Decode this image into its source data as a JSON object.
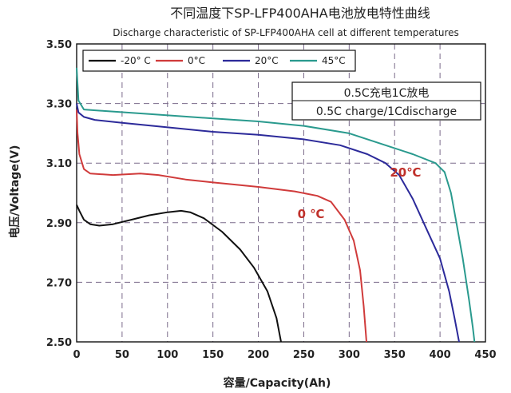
{
  "chart_data": {
    "type": "line",
    "title": "不同温度下SP-LFP400AHA电池放电特性曲线",
    "subtitle": "Discharge characteristic of SP-LFP400AHA cell at different temperatures",
    "xlabel": "容量/Capacity(Ah)",
    "ylabel": "电压/Voltage(V)",
    "xlim": [
      0,
      450
    ],
    "ylim": [
      2.5,
      3.5
    ],
    "x_ticks": [
      "0",
      "50",
      "100",
      "150",
      "200",
      "250",
      "300",
      "350",
      "400",
      "450"
    ],
    "y_ticks": [
      "2.50",
      "2.70",
      "2.90",
      "3.10",
      "3.30",
      "3.50"
    ],
    "grid": true,
    "legend_position": "top-left",
    "series": [
      {
        "name": "-20° C",
        "color": "#111111",
        "points": [
          [
            0,
            2.96
          ],
          [
            3,
            2.94
          ],
          [
            8,
            2.91
          ],
          [
            15,
            2.895
          ],
          [
            25,
            2.89
          ],
          [
            40,
            2.895
          ],
          [
            60,
            2.91
          ],
          [
            80,
            2.925
          ],
          [
            100,
            2.935
          ],
          [
            115,
            2.94
          ],
          [
            125,
            2.935
          ],
          [
            140,
            2.915
          ],
          [
            160,
            2.87
          ],
          [
            180,
            2.81
          ],
          [
            195,
            2.75
          ],
          [
            210,
            2.67
          ],
          [
            220,
            2.58
          ],
          [
            225,
            2.5
          ]
        ]
      },
      {
        "name": "0°C",
        "color": "#d03b3b",
        "points": [
          [
            0,
            3.28
          ],
          [
            1,
            3.2
          ],
          [
            3,
            3.13
          ],
          [
            8,
            3.08
          ],
          [
            15,
            3.065
          ],
          [
            40,
            3.06
          ],
          [
            70,
            3.065
          ],
          [
            90,
            3.06
          ],
          [
            120,
            3.045
          ],
          [
            150,
            3.035
          ],
          [
            200,
            3.02
          ],
          [
            240,
            3.005
          ],
          [
            265,
            2.99
          ],
          [
            280,
            2.97
          ],
          [
            295,
            2.91
          ],
          [
            305,
            2.84
          ],
          [
            312,
            2.74
          ],
          [
            316,
            2.62
          ],
          [
            319,
            2.5
          ]
        ]
      },
      {
        "name": "20°C",
        "color": "#2c2a9a",
        "points": [
          [
            0,
            3.3
          ],
          [
            2,
            3.27
          ],
          [
            8,
            3.255
          ],
          [
            20,
            3.245
          ],
          [
            50,
            3.235
          ],
          [
            100,
            3.22
          ],
          [
            150,
            3.205
          ],
          [
            200,
            3.195
          ],
          [
            250,
            3.18
          ],
          [
            290,
            3.16
          ],
          [
            320,
            3.13
          ],
          [
            340,
            3.1
          ],
          [
            355,
            3.06
          ],
          [
            370,
            2.98
          ],
          [
            385,
            2.88
          ],
          [
            400,
            2.78
          ],
          [
            410,
            2.67
          ],
          [
            416,
            2.58
          ],
          [
            421,
            2.5
          ]
        ]
      },
      {
        "name": "45°C",
        "color": "#2a9a8e",
        "points": [
          [
            0,
            3.42
          ],
          [
            2,
            3.31
          ],
          [
            8,
            3.28
          ],
          [
            30,
            3.275
          ],
          [
            80,
            3.265
          ],
          [
            150,
            3.25
          ],
          [
            200,
            3.24
          ],
          [
            250,
            3.225
          ],
          [
            300,
            3.2
          ],
          [
            340,
            3.16
          ],
          [
            370,
            3.13
          ],
          [
            395,
            3.1
          ],
          [
            405,
            3.07
          ],
          [
            412,
            3.0
          ],
          [
            418,
            2.9
          ],
          [
            425,
            2.78
          ],
          [
            432,
            2.64
          ],
          [
            436,
            2.55
          ],
          [
            438,
            2.5
          ]
        ]
      }
    ]
  },
  "note": {
    "line1": "0.5C充电1C放电",
    "line2": "0.5C charge/1Cdischarge"
  },
  "annotations": [
    {
      "text": "20℃",
      "x": 362,
      "y": 3.055,
      "color": "#c0312b"
    },
    {
      "text": "0 ℃",
      "x": 258,
      "y": 2.915,
      "color": "#c0312b"
    }
  ]
}
